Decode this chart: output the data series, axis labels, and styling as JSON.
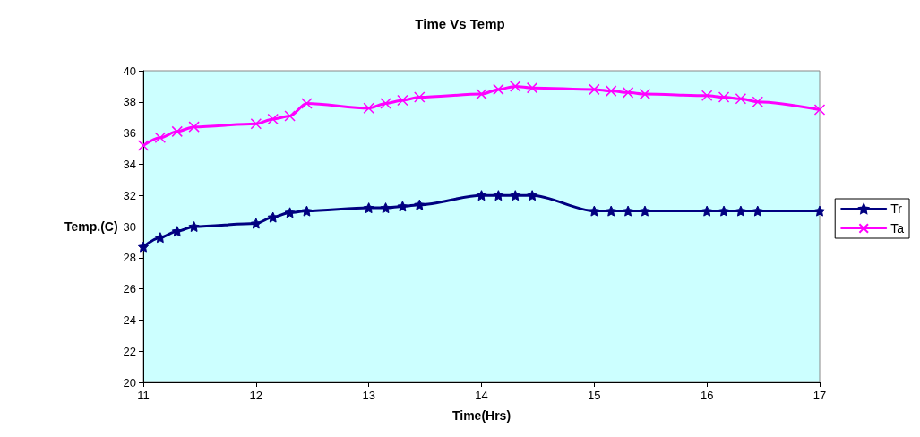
{
  "chart_data": {
    "type": "line",
    "title": "Time Vs Temp",
    "xlabel": "Time(Hrs)",
    "ylabel": "Temp.(C)",
    "x": [
      11,
      11.15,
      11.3,
      11.45,
      12,
      12.15,
      12.3,
      12.45,
      13,
      13.15,
      13.3,
      13.45,
      14,
      14.15,
      14.3,
      14.45,
      15,
      15.15,
      15.3,
      15.45,
      16,
      16.15,
      16.3,
      16.45,
      17
    ],
    "series": [
      {
        "name": "Tr",
        "color": "#000080",
        "marker": "star",
        "values": [
          28.7,
          29.3,
          29.7,
          30.0,
          30.2,
          30.6,
          30.9,
          31.0,
          31.2,
          31.2,
          31.3,
          31.4,
          32,
          32,
          32,
          32,
          31,
          31,
          31,
          31,
          31,
          31,
          31,
          31,
          31
        ]
      },
      {
        "name": "Ta",
        "color": "#ff00ff",
        "marker": "cross",
        "values": [
          35.2,
          35.7,
          36.1,
          36.4,
          36.6,
          36.9,
          37.1,
          37.9,
          37.6,
          37.9,
          38.1,
          38.3,
          38.5,
          38.8,
          39.0,
          38.9,
          38.8,
          38.7,
          38.6,
          38.5,
          38.4,
          38.3,
          38.2,
          38.0,
          37.5
        ]
      }
    ],
    "xlim": [
      11,
      17
    ],
    "xticks": [
      11,
      12,
      13,
      14,
      15,
      16,
      17
    ],
    "ylim": [
      20,
      40
    ],
    "yticks": [
      20,
      22,
      24,
      26,
      28,
      30,
      32,
      34,
      36,
      38,
      40
    ],
    "grid": false,
    "legend": "right",
    "line_style": "solid"
  }
}
